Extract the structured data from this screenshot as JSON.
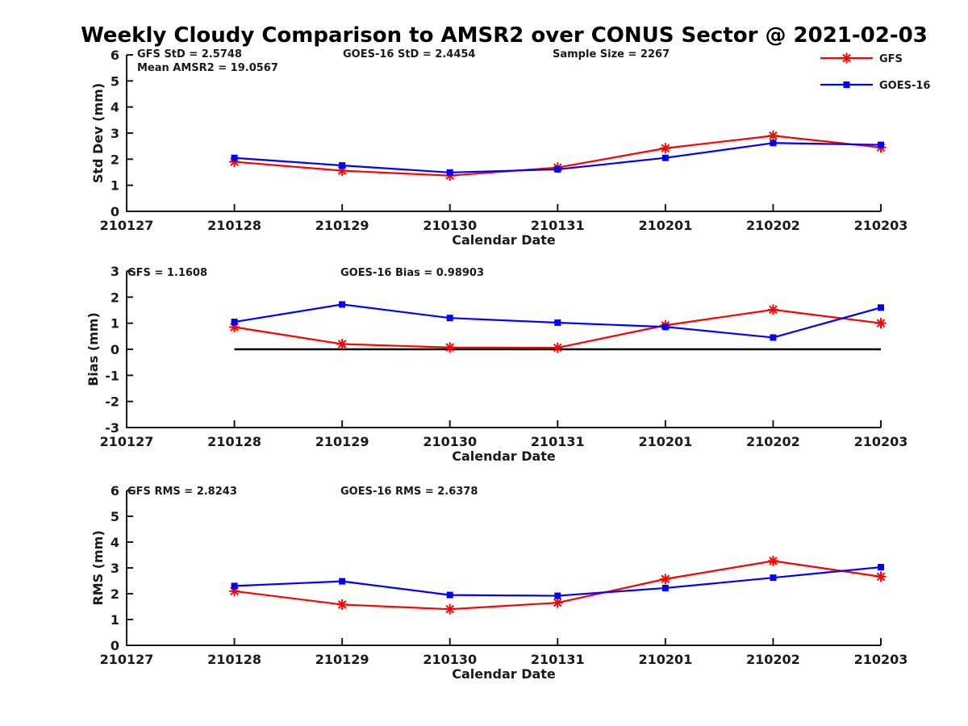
{
  "title": "Weekly Cloudy Comparison to AMSR2 over CONUS Sector @ 2021-02-03",
  "colors": {
    "gfs": "#ff0000",
    "goes16": "#0000ff",
    "axis": "#1a1a1a",
    "zero_line": "#000000",
    "background": "#ffffff"
  },
  "legend": {
    "position": "top-right",
    "items": [
      {
        "label": "GFS",
        "color": "#ff0000",
        "marker": "asterisk-icon"
      },
      {
        "label": "GOES-16",
        "color": "#0000ff",
        "marker": "square-icon"
      }
    ]
  },
  "chart_data": [
    {
      "type": "line",
      "id": "std-dev",
      "ylabel": "Std Dev (mm)",
      "xlabel": "Calendar Date",
      "ylim": [
        0,
        6
      ],
      "yticks": [
        0,
        1,
        2,
        3,
        4,
        5,
        6
      ],
      "categories": [
        "210127",
        "210128",
        "210129",
        "210130",
        "210131",
        "210201",
        "210202",
        "210203"
      ],
      "data_start_index": 1,
      "zero_line": false,
      "grid": false,
      "annotations": [
        "GFS StD = 2.5748",
        "Mean AMSR2 = 19.0567",
        "GOES-16 StD = 2.4454",
        "Sample Size = 2267"
      ],
      "series": [
        {
          "name": "GFS",
          "color": "#ff0000",
          "marker": "asterisk",
          "values": [
            1.9,
            1.56,
            1.37,
            1.68,
            2.42,
            2.9,
            2.45
          ]
        },
        {
          "name": "GOES-16",
          "color": "#0000ff",
          "marker": "square",
          "values": [
            2.05,
            1.76,
            1.49,
            1.61,
            2.05,
            2.62,
            2.55
          ]
        }
      ]
    },
    {
      "type": "line",
      "id": "bias",
      "ylabel": "Bias (mm)",
      "xlabel": "Calendar Date",
      "ylim": [
        -3,
        3
      ],
      "yticks": [
        -3,
        -2,
        -1,
        0,
        1,
        2,
        3
      ],
      "categories": [
        "210127",
        "210128",
        "210129",
        "210130",
        "210131",
        "210201",
        "210202",
        "210203"
      ],
      "data_start_index": 1,
      "zero_line": true,
      "grid": false,
      "annotations": [
        "GFS = 1.1608",
        "GOES-16 Bias  = 0.98903"
      ],
      "series": [
        {
          "name": "GFS",
          "color": "#ff0000",
          "marker": "asterisk",
          "values": [
            0.85,
            0.2,
            0.07,
            0.06,
            0.92,
            1.52,
            1.0
          ]
        },
        {
          "name": "GOES-16",
          "color": "#0000ff",
          "marker": "square",
          "values": [
            1.05,
            1.72,
            1.2,
            1.02,
            0.86,
            0.45,
            1.6
          ]
        }
      ]
    },
    {
      "type": "line",
      "id": "rms",
      "ylabel": "RMS (mm)",
      "xlabel": "Calendar Date",
      "ylim": [
        0,
        6
      ],
      "yticks": [
        0,
        1,
        2,
        3,
        4,
        5,
        6
      ],
      "categories": [
        "210127",
        "210128",
        "210129",
        "210130",
        "210131",
        "210201",
        "210202",
        "210203"
      ],
      "data_start_index": 1,
      "zero_line": false,
      "grid": false,
      "annotations": [
        "GFS RMS = 2.8243",
        "GOES-16 RMS = 2.6378"
      ],
      "series": [
        {
          "name": "GFS",
          "color": "#ff0000",
          "marker": "asterisk",
          "values": [
            2.1,
            1.58,
            1.4,
            1.65,
            2.57,
            3.27,
            2.66
          ]
        },
        {
          "name": "GOES-16",
          "color": "#0000ff",
          "marker": "square",
          "values": [
            2.3,
            2.48,
            1.95,
            1.92,
            2.22,
            2.62,
            3.03
          ]
        }
      ]
    }
  ]
}
